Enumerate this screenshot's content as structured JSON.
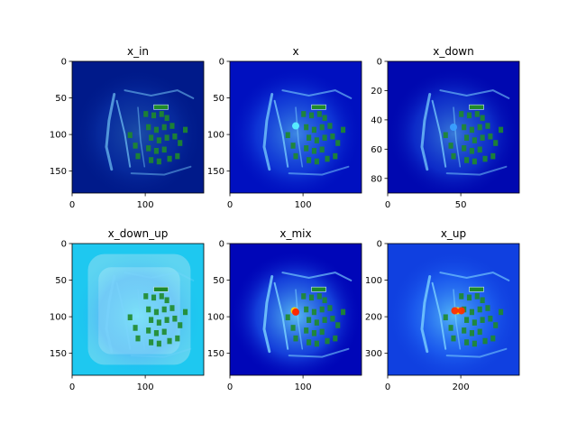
{
  "chart_data": [
    {
      "type": "heatmap",
      "title": "x_in",
      "xticks": [
        0,
        100
      ],
      "yticks": [
        0,
        50,
        100,
        150
      ],
      "xlim": [
        0,
        180
      ],
      "ylim": [
        180,
        0
      ],
      "style": {
        "bg": "#001a8a",
        "glow": 0.25,
        "ring": false,
        "hot": []
      }
    },
    {
      "type": "heatmap",
      "title": "x",
      "xticks": [
        0,
        100
      ],
      "yticks": [
        0,
        50,
        100,
        150
      ],
      "xlim": [
        0,
        180
      ],
      "ylim": [
        180,
        0
      ],
      "style": {
        "bg": "#0010c0",
        "glow": 0.55,
        "ring": false,
        "hot": [
          [
            0.5,
            0.49,
            "#58f0ff"
          ]
        ]
      }
    },
    {
      "type": "heatmap",
      "title": "x_down",
      "xticks": [
        0,
        50
      ],
      "yticks": [
        0,
        20,
        40,
        60,
        80
      ],
      "xlim": [
        0,
        90
      ],
      "ylim": [
        90,
        0
      ],
      "style": {
        "bg": "#0008b0",
        "glow": 0.5,
        "ring": false,
        "hot": [
          [
            0.5,
            0.5,
            "#3aa0ff"
          ]
        ]
      }
    },
    {
      "type": "heatmap",
      "title": "x_down_up",
      "xticks": [
        0,
        100
      ],
      "yticks": [
        0,
        50,
        100,
        150
      ],
      "xlim": [
        0,
        180
      ],
      "ylim": [
        180,
        0
      ],
      "style": {
        "bg": "#1ec8f0",
        "glow": 0.35,
        "ring": true,
        "hot": []
      }
    },
    {
      "type": "heatmap",
      "title": "x_mix",
      "xticks": [
        0,
        100
      ],
      "yticks": [
        0,
        50,
        100,
        150
      ],
      "xlim": [
        0,
        180
      ],
      "ylim": [
        180,
        0
      ],
      "style": {
        "bg": "#0006b8",
        "glow": 0.8,
        "ring": false,
        "hot": [
          [
            0.49,
            0.51,
            "#ffd000"
          ],
          [
            0.5,
            0.52,
            "#ff2000"
          ]
        ]
      }
    },
    {
      "type": "heatmap",
      "title": "x_up",
      "xticks": [
        0,
        200
      ],
      "yticks": [
        0,
        100,
        200,
        300
      ],
      "xlim": [
        0,
        360
      ],
      "ylim": [
        360,
        0
      ],
      "style": {
        "bg": "#1040e0",
        "glow": 0.7,
        "ring": false,
        "hot": [
          [
            0.53,
            0.51,
            "#ffd000"
          ],
          [
            0.56,
            0.51,
            "#ff3000"
          ],
          [
            0.51,
            0.51,
            "#ff3000"
          ]
        ]
      }
    }
  ],
  "colors": {
    "buildings": "#1f8a2a",
    "structure": "#7fd6ff",
    "hot_yellow": "#ffd000",
    "hot_red": "#ff2000"
  }
}
